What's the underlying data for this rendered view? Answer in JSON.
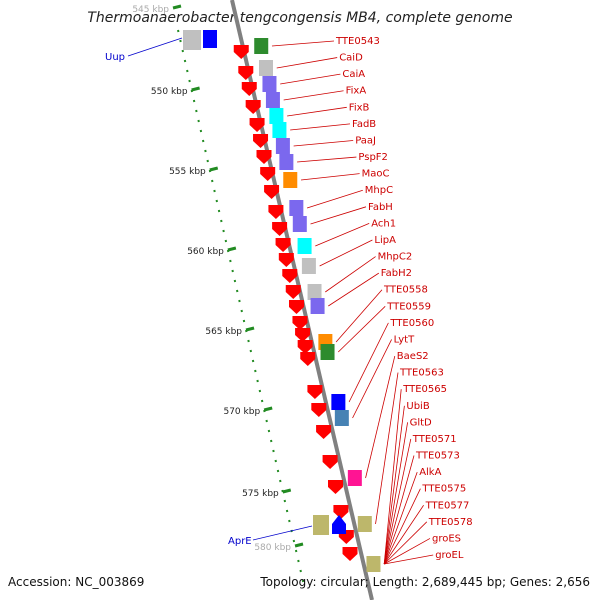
{
  "title": "Thermoanaerobacter tengcongensis MB4, complete genome",
  "accession": "Accession: NC_003869",
  "topology": "Topology: circular; Length: 2,689,445 bp; Genes: 2,656",
  "colors": {
    "backbone": "#808080",
    "forward_arrow": "#ff0000",
    "label_red": "#cc0000",
    "label_blue": "#0000cc",
    "tick_green": "#228b22",
    "cog_purple": "#7b68ee",
    "cog_cyan": "#00ffff",
    "cog_gray": "#c0c0c0",
    "cog_green": "#2e8b2e",
    "cog_orange": "#ff8c00",
    "cog_blue": "#0000ff",
    "cog_steel": "#4682b4",
    "cog_magenta": "#ff1493",
    "cog_khaki": "#bdb76b"
  },
  "ruler": [
    {
      "label": "545 kbp",
      "ghost": true
    },
    {
      "label": "550 kbp"
    },
    {
      "label": "555 kbp"
    },
    {
      "label": "560 kbp"
    },
    {
      "label": "565 kbp"
    },
    {
      "label": "570 kbp"
    },
    {
      "label": "575 kbp"
    },
    {
      "label": "580 kbp",
      "ghost": true
    }
  ],
  "gene_labels_right": [
    "TTE0543",
    "CaiD",
    "CaiA",
    "FixA",
    "FixB",
    "FadB",
    "PaaJ",
    "PspF2",
    "MaoC",
    "MhpC",
    "FabH",
    "Ach1",
    "LipA",
    "MhpC2",
    "FabH2",
    "TTE0558",
    "TTE0559",
    "TTE0560",
    "LytT",
    "BaeS2",
    "TTE0563",
    "TTE0565",
    "UbiB",
    "GltD",
    "TTE0571",
    "TTE0573",
    "AlkA",
    "TTE0575",
    "TTE0577",
    "TTE0578",
    "groES",
    "groEL"
  ],
  "gene_labels_left": [
    "Uup",
    "AprE"
  ]
}
